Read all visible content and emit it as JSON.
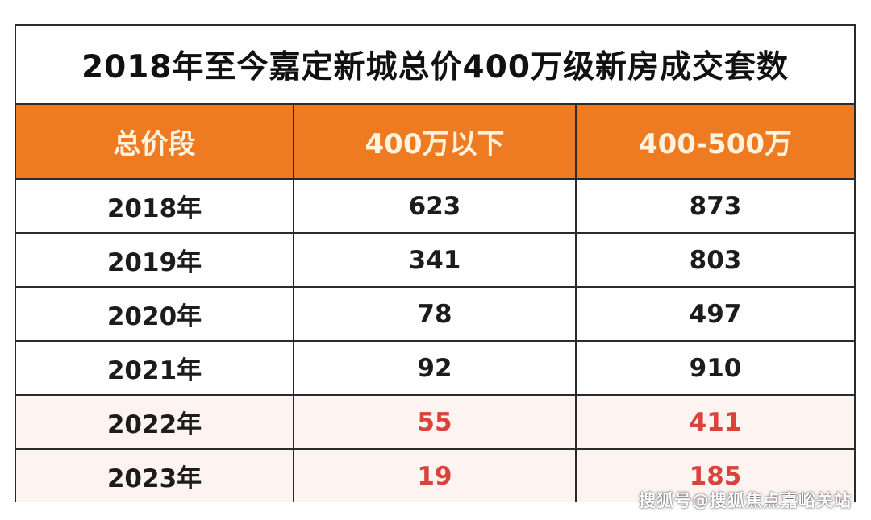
{
  "title": "2018年至今嘉定新城总价400万级新房成交套数",
  "header": {
    "col1": "总价段",
    "col2": "400万以下",
    "col3": "400-500万"
  },
  "rows": [
    {
      "year": "2018年",
      "below400": "623",
      "range400_500": "873"
    },
    {
      "year": "2019年",
      "below400": "341",
      "range400_500": "803"
    },
    {
      "year": "2020年",
      "below400": "78",
      "range400_500": "497"
    },
    {
      "year": "2021年",
      "below400": "92",
      "range400_500": "910"
    },
    {
      "year": "2022年",
      "below400": "55",
      "range400_500": "411"
    },
    {
      "year": "2023年",
      "below400": "19",
      "range400_500": "185"
    }
  ],
  "watermark": "搜狐号@搜狐焦点嘉峪关站",
  "colors": {
    "header_bg": "#ee7b22",
    "header_text": "#fff3df",
    "highlight_text": "#d9433a",
    "highlight_bg": "#fdf4f2"
  }
}
